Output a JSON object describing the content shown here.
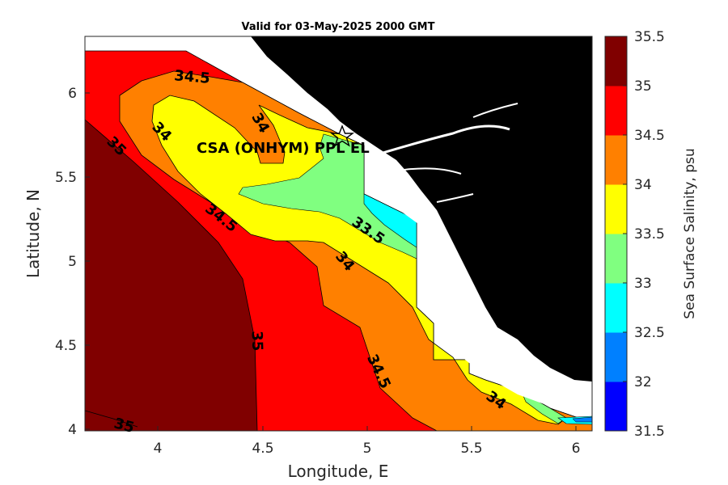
{
  "title": "Valid for 03-May-2025 2000 GMT",
  "axes": {
    "xlabel": "Longitude, E",
    "ylabel": "Latitude, N",
    "xlim": [
      3.65,
      6.07
    ],
    "ylim": [
      4.0,
      6.33
    ],
    "xticks": [
      "4",
      "4.5",
      "5",
      "5.5",
      "6"
    ],
    "yticks": [
      "4",
      "4.5",
      "5",
      "5.5",
      "6"
    ]
  },
  "colorbar": {
    "label": "Sea Surface Salinity, psu",
    "ticks": [
      "31.5",
      "32",
      "32.5",
      "33",
      "33.5",
      "34",
      "34.5",
      "35",
      "35.5"
    ],
    "colors": [
      "#0000ff",
      "#0080ff",
      "#00ffff",
      "#80ff80",
      "#ffff00",
      "#ff8000",
      "#ff0000",
      "#800000"
    ]
  },
  "site": {
    "label": "CSA (ONHYM) PPL EL",
    "lon": 4.88,
    "lat": 5.75
  },
  "contour_labels": [
    "34.5",
    "34",
    "34",
    "35",
    "34.5",
    "33.5",
    "34",
    "35",
    "34.5",
    "34",
    "35"
  ],
  "colors": {
    "land": "#000000",
    "no_data": "#ffffff",
    "axis": "#262626"
  }
}
